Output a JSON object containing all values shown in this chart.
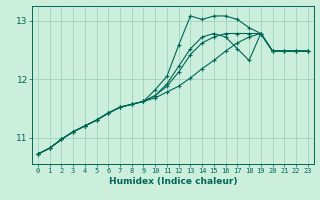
{
  "title": "",
  "xlabel": "Humidex (Indice chaleur)",
  "background_color": "#cceedd",
  "grid_color": "#99ccbb",
  "line_color": "#006655",
  "x_data": [
    0,
    1,
    2,
    3,
    4,
    5,
    6,
    7,
    8,
    9,
    10,
    11,
    12,
    13,
    14,
    15,
    16,
    17,
    18,
    19,
    20,
    21,
    22,
    23
  ],
  "line1": [
    10.72,
    10.82,
    10.97,
    11.1,
    11.2,
    11.3,
    11.42,
    11.52,
    11.57,
    11.62,
    11.82,
    12.05,
    12.58,
    13.08,
    13.02,
    13.08,
    13.08,
    13.02,
    12.88,
    12.78,
    12.48,
    12.48,
    12.48,
    12.48
  ],
  "line2": [
    10.72,
    10.82,
    10.97,
    11.1,
    11.2,
    11.3,
    11.42,
    11.52,
    11.57,
    11.62,
    11.68,
    11.78,
    11.88,
    12.02,
    12.18,
    12.32,
    12.48,
    12.62,
    12.72,
    12.78,
    12.48,
    12.48,
    12.48,
    12.48
  ],
  "line3": [
    10.72,
    10.82,
    10.97,
    11.1,
    11.2,
    11.3,
    11.42,
    11.52,
    11.57,
    11.62,
    11.72,
    11.88,
    12.12,
    12.42,
    12.62,
    12.72,
    12.78,
    12.78,
    12.78,
    12.78,
    12.48,
    12.48,
    12.48,
    12.48
  ],
  "line4": [
    10.72,
    10.82,
    10.97,
    11.1,
    11.2,
    11.3,
    11.42,
    11.52,
    11.57,
    11.62,
    11.72,
    11.92,
    12.22,
    12.52,
    12.72,
    12.78,
    12.72,
    12.52,
    12.32,
    12.78,
    12.48,
    12.48,
    12.48,
    12.48
  ],
  "ylim": [
    10.55,
    13.25
  ],
  "xlim": [
    -0.5,
    23.5
  ],
  "yticks": [
    11,
    12,
    13
  ],
  "xticks": [
    0,
    1,
    2,
    3,
    4,
    5,
    6,
    7,
    8,
    9,
    10,
    11,
    12,
    13,
    14,
    15,
    16,
    17,
    18,
    19,
    20,
    21,
    22,
    23
  ]
}
